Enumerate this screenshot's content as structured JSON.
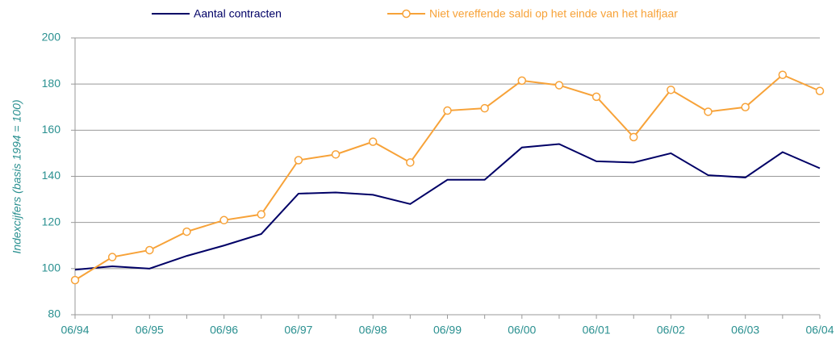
{
  "chart_data": {
    "type": "line",
    "y_label": "Indexcijfers (basis 1994 = 100)",
    "categories": [
      "06/94",
      null,
      "06/95",
      null,
      "06/96",
      null,
      "06/97",
      null,
      "06/98",
      null,
      "06/99",
      null,
      "06/00",
      null,
      "06/01",
      null,
      "06/02",
      null,
      "06/03",
      null,
      "06/04"
    ],
    "series": [
      {
        "name": "Aantal contracten",
        "color": "#000066",
        "marker": false,
        "values": [
          99.5,
          101,
          100,
          105.5,
          110,
          115,
          132.5,
          133,
          132,
          128,
          138.5,
          138.5,
          152.5,
          154,
          146.5,
          146,
          150,
          140.5,
          139.5,
          150.5,
          143.5
        ]
      },
      {
        "name": "Niet vereffende saldi op het einde van het halfjaar",
        "color": "#f7a238",
        "marker": true,
        "values": [
          95,
          105,
          108,
          116,
          121,
          123.5,
          147,
          149.5,
          155,
          146,
          168.5,
          169.5,
          181.5,
          179.5,
          174.5,
          157,
          177.5,
          168,
          170,
          184,
          177
        ]
      }
    ],
    "ylim": [
      80,
      200
    ],
    "yticks": [
      80,
      100,
      120,
      140,
      160,
      180,
      200
    ],
    "grid": true,
    "legend": "top"
  }
}
